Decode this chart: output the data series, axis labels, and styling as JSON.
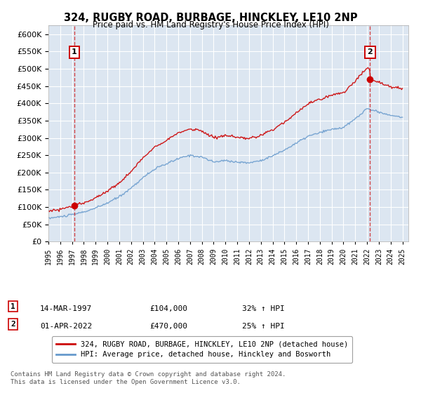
{
  "title1": "324, RUGBY ROAD, BURBAGE, HINCKLEY, LE10 2NP",
  "title2": "Price paid vs. HM Land Registry's House Price Index (HPI)",
  "ylim": [
    0,
    620000
  ],
  "xlim_start": 1995.0,
  "xlim_end": 2025.5,
  "plot_bg": "#dce6f1",
  "line1_color": "#cc0000",
  "line2_color": "#6699cc",
  "legend_label1": "324, RUGBY ROAD, BURBAGE, HINCKLEY, LE10 2NP (detached house)",
  "legend_label2": "HPI: Average price, detached house, Hinckley and Bosworth",
  "marker1_x": 1997.2,
  "marker1_y": 104000,
  "marker2_x": 2022.25,
  "marker2_y": 470000,
  "note1_date": "14-MAR-1997",
  "note1_price": "£104,000",
  "note1_hpi": "32% ↑ HPI",
  "note2_date": "01-APR-2022",
  "note2_price": "£470,000",
  "note2_hpi": "25% ↑ HPI",
  "footer": "Contains HM Land Registry data © Crown copyright and database right 2024.\nThis data is licensed under the Open Government Licence v3.0.",
  "hpi_years": [
    1995,
    1996,
    1997,
    1998,
    1999,
    2000,
    2001,
    2002,
    2003,
    2004,
    2005,
    2006,
    2007,
    2008,
    2009,
    2010,
    2011,
    2012,
    2013,
    2014,
    2015,
    2016,
    2017,
    2018,
    2019,
    2020,
    2021,
    2022,
    2023,
    2024,
    2025
  ],
  "hpi_vals": [
    68000,
    72000,
    78000,
    86000,
    97000,
    112000,
    130000,
    155000,
    185000,
    210000,
    225000,
    240000,
    250000,
    245000,
    230000,
    235000,
    230000,
    228000,
    235000,
    248000,
    265000,
    285000,
    305000,
    315000,
    325000,
    330000,
    355000,
    385000,
    375000,
    365000,
    360000
  ]
}
